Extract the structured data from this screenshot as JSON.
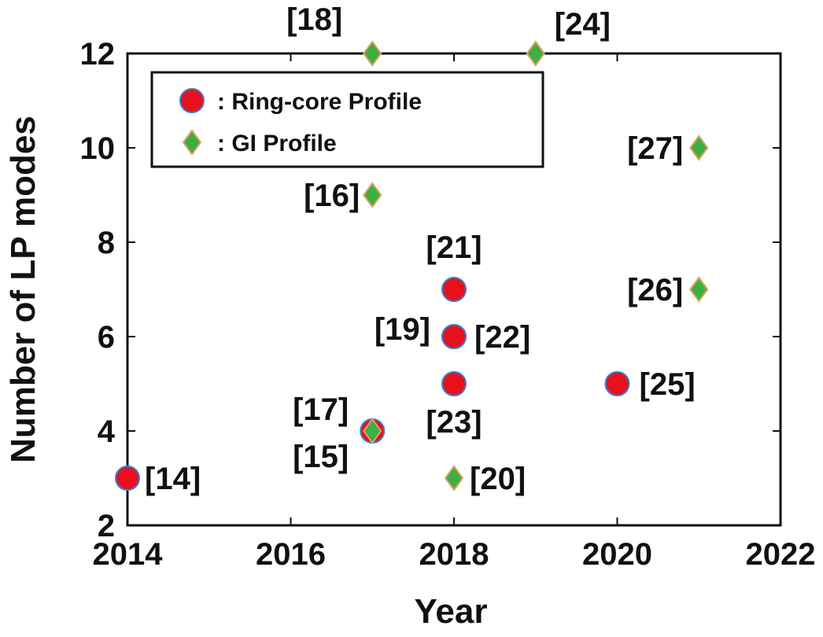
{
  "chart_data": {
    "type": "scatter",
    "xlabel": "Year",
    "ylabel": "Number of LP modes",
    "xlim": [
      2014,
      2022
    ],
    "ylim": [
      2,
      12
    ],
    "xticks": [
      2014,
      2016,
      2018,
      2020,
      2022
    ],
    "yticks": [
      2,
      4,
      6,
      8,
      10,
      12
    ],
    "grid": false,
    "legend_position": "top-left",
    "series": [
      {
        "name": ": Ring-core Profile",
        "marker": "circle",
        "color": "#e8101c",
        "edge_color": "#3a7fd0",
        "points": [
          {
            "x": 2014,
            "y": 3,
            "label": "[14]"
          },
          {
            "x": 2017,
            "y": 4,
            "label": "[15]"
          },
          {
            "x": 2018,
            "y": 7,
            "label": "[21]"
          },
          {
            "x": 2018,
            "y": 6,
            "label": "[19]"
          },
          {
            "x": 2018,
            "y": 6,
            "label": "[22]"
          },
          {
            "x": 2018,
            "y": 5,
            "label": "[23]"
          },
          {
            "x": 2020,
            "y": 5,
            "label": "[25]"
          }
        ]
      },
      {
        "name": ": GI Profile",
        "marker": "diamond",
        "color": "#3cb043",
        "edge_color": "#e0a060",
        "points": [
          {
            "x": 2017,
            "y": 12,
            "label": "[18]"
          },
          {
            "x": 2019,
            "y": 12,
            "label": "[24]"
          },
          {
            "x": 2017,
            "y": 9,
            "label": "[16]"
          },
          {
            "x": 2021,
            "y": 10,
            "label": "[27]"
          },
          {
            "x": 2021,
            "y": 7,
            "label": "[26]"
          },
          {
            "x": 2017,
            "y": 4,
            "label": "[17]"
          },
          {
            "x": 2018,
            "y": 3,
            "label": "[20]"
          }
        ]
      }
    ]
  }
}
